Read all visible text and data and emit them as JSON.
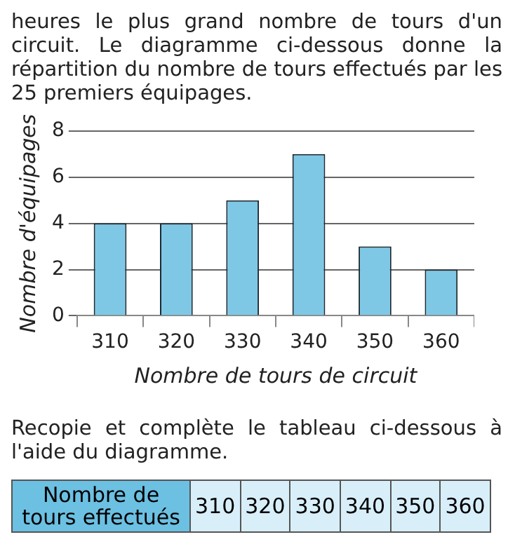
{
  "chart_data": {
    "type": "bar",
    "xlabel": "Nombre de tours de circuit",
    "ylabel": "Nombre d'équipages",
    "categories": [
      "310",
      "320",
      "330",
      "340",
      "350",
      "360"
    ],
    "values": [
      4,
      4,
      5,
      7,
      3,
      2
    ],
    "color": "#7ec8e6",
    "ylim": [
      0,
      8
    ],
    "yticks": [
      0,
      2,
      4,
      6,
      8
    ],
    "grid": "y",
    "legend": false,
    "annotations": [
      "heures le plus grand nombre de tours d'un circuit. Le diagramme ci-dessous donne la répartition du nombre de tours effectués par les 25 premiers équipages.",
      "Recopie et complète le tableau ci-dessous à l'aide du diagramme.",
      "Nombre de tours effectués"
    ]
  }
}
